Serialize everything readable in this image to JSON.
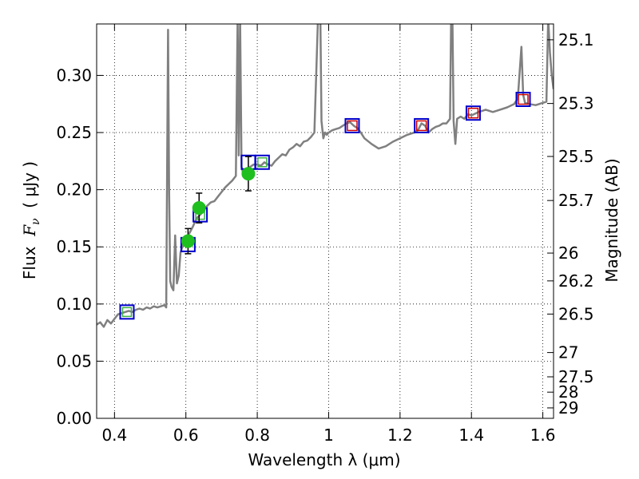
{
  "chart_data": {
    "type": "line",
    "xlabel": "Wavelength  λ (μm)",
    "ylabel_text": "Flux  ",
    "ylabel_symbol": "F",
    "ylabel_sub": "ν",
    "ylabel_unit": "  ( μJy )",
    "y2label": "Magnitude (AB)",
    "xlim": [
      0.35,
      1.63
    ],
    "ylim": [
      0.0,
      0.345
    ],
    "grid": true,
    "xticks": [
      0.4,
      0.6,
      0.8,
      1.0,
      1.2,
      1.4,
      1.6
    ],
    "xtick_labels": [
      "0.4",
      "0.6",
      "0.8",
      "1",
      "1.2",
      "1.4",
      "1.6"
    ],
    "yticks": [
      0.0,
      0.05,
      0.1,
      0.15,
      0.2,
      0.25,
      0.3
    ],
    "ytick_labels": [
      "0.00",
      "0.05",
      "0.10",
      "0.15",
      "0.20",
      "0.25",
      "0.30"
    ],
    "y2ticks": [
      25.1,
      25.3,
      25.5,
      25.7,
      26,
      26.2,
      26.5,
      27,
      27.5,
      28,
      29
    ],
    "y2tick_labels": [
      "25.1",
      "25.3",
      "25.5",
      "25.7",
      "26",
      "26.2",
      "26.5",
      "27",
      "27.5",
      "28",
      "29"
    ],
    "colors": {
      "spectrum": "#808080",
      "observed": "#1fbf1f",
      "model_box": "#0000cc",
      "green_box": "#3cb043",
      "red_box": "#cc0000"
    },
    "series": [
      {
        "kind": "spectrum",
        "x": [
          0.35,
          0.36,
          0.37,
          0.38,
          0.39,
          0.4,
          0.41,
          0.42,
          0.43,
          0.44,
          0.45,
          0.46,
          0.47,
          0.48,
          0.49,
          0.5,
          0.51,
          0.52,
          0.53,
          0.54,
          0.545,
          0.55,
          0.553,
          0.556,
          0.56,
          0.565,
          0.57,
          0.575,
          0.58,
          0.585,
          0.59,
          0.6,
          0.61,
          0.62,
          0.63,
          0.64,
          0.65,
          0.66,
          0.67,
          0.68,
          0.69,
          0.7,
          0.71,
          0.72,
          0.73,
          0.74,
          0.745,
          0.748,
          0.752,
          0.756,
          0.76,
          0.77,
          0.78,
          0.79,
          0.8,
          0.81,
          0.82,
          0.83,
          0.84,
          0.85,
          0.86,
          0.87,
          0.88,
          0.89,
          0.9,
          0.91,
          0.92,
          0.93,
          0.94,
          0.95,
          0.96,
          0.97,
          0.975,
          0.98,
          0.985,
          0.99,
          0.995,
          1.0,
          1.01,
          1.02,
          1.03,
          1.04,
          1.05,
          1.06,
          1.07,
          1.08,
          1.09,
          1.1,
          1.12,
          1.14,
          1.16,
          1.18,
          1.2,
          1.22,
          1.24,
          1.25,
          1.26,
          1.27,
          1.28,
          1.29,
          1.3,
          1.31,
          1.32,
          1.33,
          1.34,
          1.345,
          1.35,
          1.355,
          1.36,
          1.37,
          1.38,
          1.39,
          1.4,
          1.42,
          1.44,
          1.46,
          1.48,
          1.5,
          1.52,
          1.53,
          1.54,
          1.545,
          1.55,
          1.56,
          1.58,
          1.6,
          1.61,
          1.615,
          1.62,
          1.625,
          1.63
        ],
        "y": [
          0.082,
          0.084,
          0.08,
          0.086,
          0.083,
          0.087,
          0.091,
          0.092,
          0.093,
          0.094,
          0.093,
          0.095,
          0.096,
          0.095,
          0.097,
          0.096,
          0.098,
          0.097,
          0.098,
          0.099,
          0.097,
          0.34,
          0.2,
          0.12,
          0.115,
          0.112,
          0.16,
          0.118,
          0.125,
          0.145,
          0.15,
          0.158,
          0.162,
          0.168,
          0.175,
          0.178,
          0.182,
          0.186,
          0.189,
          0.19,
          0.194,
          0.198,
          0.202,
          0.205,
          0.208,
          0.212,
          0.35,
          0.23,
          0.35,
          0.22,
          0.215,
          0.218,
          0.22,
          0.222,
          0.222,
          0.221,
          0.224,
          0.222,
          0.221,
          0.225,
          0.228,
          0.231,
          0.23,
          0.235,
          0.237,
          0.24,
          0.238,
          0.242,
          0.243,
          0.246,
          0.25,
          0.35,
          0.4,
          0.26,
          0.245,
          0.25,
          0.248,
          0.25,
          0.252,
          0.253,
          0.254,
          0.256,
          0.258,
          0.259,
          0.256,
          0.254,
          0.25,
          0.245,
          0.24,
          0.236,
          0.238,
          0.242,
          0.245,
          0.248,
          0.25,
          0.252,
          0.258,
          0.256,
          0.25,
          0.253,
          0.255,
          0.256,
          0.258,
          0.258,
          0.262,
          0.4,
          0.26,
          0.24,
          0.262,
          0.264,
          0.262,
          0.266,
          0.265,
          0.268,
          0.27,
          0.268,
          0.27,
          0.272,
          0.275,
          0.28,
          0.325,
          0.283,
          0.276,
          0.275,
          0.274,
          0.276,
          0.277,
          0.35,
          0.32,
          0.3,
          0.288
        ]
      },
      {
        "kind": "observed",
        "points": [
          {
            "x": 0.606,
            "y": 0.155,
            "yerr": 0.011
          },
          {
            "x": 0.637,
            "y": 0.184,
            "yerr": 0.013
          },
          {
            "x": 0.775,
            "y": 0.214,
            "yerr": 0.015
          }
        ]
      },
      {
        "kind": "model_box",
        "points": [
          {
            "x": 0.435,
            "y": 0.093
          },
          {
            "x": 0.606,
            "y": 0.152
          },
          {
            "x": 0.64,
            "y": 0.178
          },
          {
            "x": 0.775,
            "y": 0.224
          },
          {
            "x": 0.814,
            "y": 0.224
          },
          {
            "x": 1.066,
            "y": 0.256
          },
          {
            "x": 1.26,
            "y": 0.256
          },
          {
            "x": 1.405,
            "y": 0.267
          },
          {
            "x": 1.545,
            "y": 0.279
          }
        ]
      },
      {
        "kind": "green_box",
        "points": [
          {
            "x": 0.435,
            "y": 0.093
          },
          {
            "x": 0.64,
            "y": 0.178
          },
          {
            "x": 0.814,
            "y": 0.224
          }
        ]
      },
      {
        "kind": "red_box",
        "points": [
          {
            "x": 1.066,
            "y": 0.256
          },
          {
            "x": 1.26,
            "y": 0.256
          },
          {
            "x": 1.405,
            "y": 0.267
          },
          {
            "x": 1.545,
            "y": 0.279
          }
        ]
      }
    ]
  }
}
